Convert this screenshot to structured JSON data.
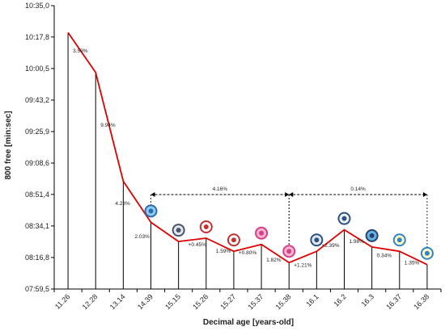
{
  "chart_data": {
    "type": "line",
    "xlabel": "Decimal age [years-old]",
    "ylabel": "800 free [min:sec]",
    "y_ticks": [
      "07:59,5",
      "08:16,8",
      "08:34,1",
      "08:51,4",
      "09:08,6",
      "09:25,9",
      "09:43,2",
      "10:00,5",
      "10:17,8",
      "10:35,0"
    ],
    "ylim": [
      "07:59,5",
      "10:35,0"
    ],
    "x": [
      "11.26",
      "12.28",
      "13.14",
      "14.39",
      "15.15",
      "15.26",
      "15.27",
      "15.37",
      "15.38",
      "16.1",
      "16.2",
      "16.3",
      "16.37",
      "16.38"
    ],
    "values": [
      "10:20,2",
      "09:58,3",
      "08:58,6",
      "08:36,1",
      "08:25,6",
      "08:27,4",
      "08:20,2",
      "08:24,0",
      "08:14,0",
      "08:20,2",
      "08:32,0",
      "08:22,6",
      "08:20,2",
      "08:12,9"
    ],
    "point_labels": [
      "3.59%",
      "9.94%",
      "4.23%",
      "2.03%",
      "+0.45%",
      "1.59%",
      "+0.80%",
      "1.82%",
      "+1.21%",
      "+2.39%",
      "1.98%",
      "0.34%",
      "1.35%"
    ],
    "range_annotations": [
      {
        "from": "14.39",
        "to": "15.38",
        "label": "4.16%"
      },
      {
        "from": "15.38",
        "to": "16.38",
        "label": "0.14%"
      }
    ],
    "grid": false,
    "line_color": "#e00000",
    "drop_line_color": "#000000",
    "event_icons": [
      "event-badge-icon",
      "event-badge-icon",
      "event-badge-icon",
      "event-badge-icon",
      "event-badge-icon",
      "event-badge-icon",
      "event-badge-icon",
      "event-badge-icon",
      "event-badge-icon",
      "event-badge-icon",
      "event-badge-icon"
    ]
  }
}
